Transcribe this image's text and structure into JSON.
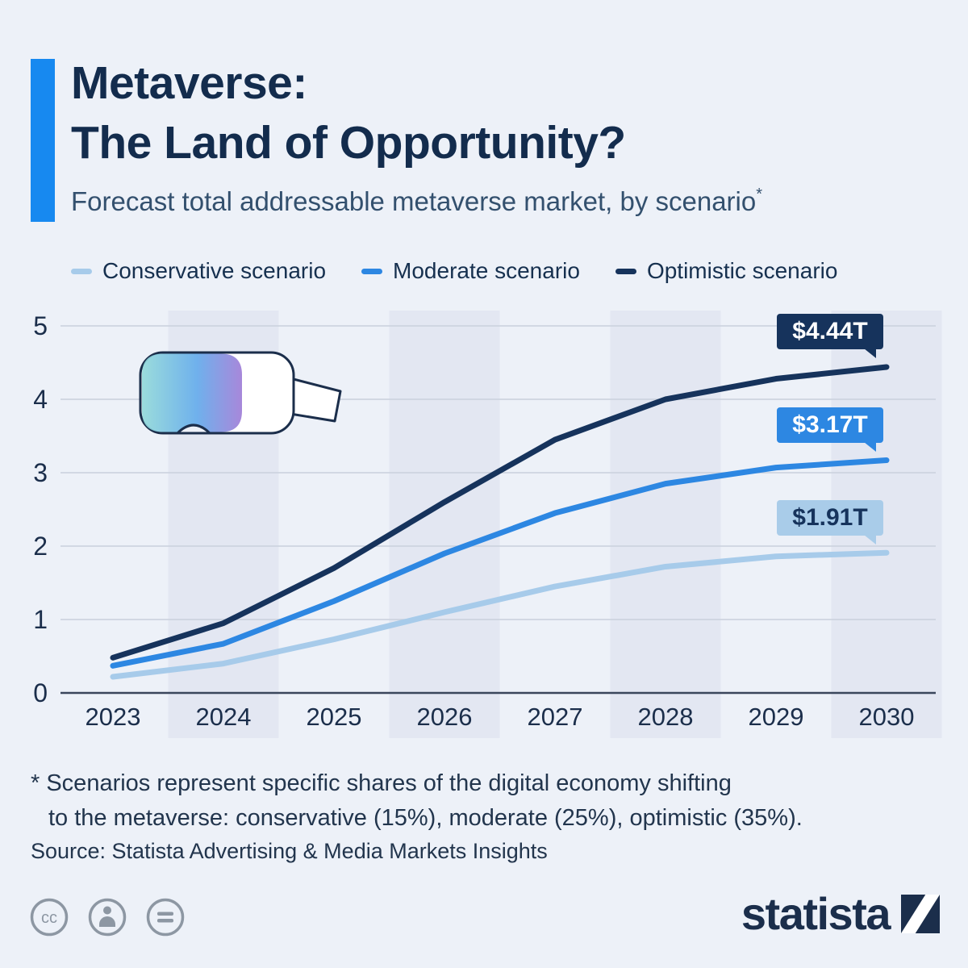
{
  "colors": {
    "background": "#edf1f8",
    "accent_bar": "#1789f0",
    "title": "#132c4d",
    "subtitle": "#33506e",
    "stripe": "#e3e7f2",
    "gridline": "#c9d0dc",
    "zero_axis": "#3a465c",
    "axis_text": "#1b2e4b",
    "conservative": "#a7cbea",
    "moderate": "#2d87e2",
    "optimistic": "#16335c"
  },
  "header": {
    "title_line1": "Metaverse:",
    "title_line2": "The Land of Opportunity?",
    "subtitle": "Forecast total addressable metaverse market, by scenario",
    "footnote_marker": "*"
  },
  "legend": {
    "items": [
      {
        "label": "Conservative scenario",
        "color": "#a7cbea"
      },
      {
        "label": "Moderate scenario",
        "color": "#2d87e2"
      },
      {
        "label": "Optimistic scenario",
        "color": "#16335c"
      }
    ]
  },
  "chart_data": {
    "type": "line",
    "title": "Forecast total addressable metaverse market, by scenario",
    "x": [
      "2023",
      "2024",
      "2025",
      "2026",
      "2027",
      "2028",
      "2029",
      "2030"
    ],
    "ylim": [
      0,
      5
    ],
    "yticks": [
      "0",
      "1",
      "2",
      "3",
      "4",
      "5"
    ],
    "grid": true,
    "stripe_years": [
      "2024",
      "2026",
      "2028",
      "2030"
    ],
    "legend_position": "top",
    "series": [
      {
        "name": "Conservative scenario",
        "color": "#a7cbea",
        "values": [
          0.22,
          0.4,
          0.73,
          1.1,
          1.45,
          1.72,
          1.86,
          1.91
        ],
        "end_label": "$1.91T"
      },
      {
        "name": "Moderate scenario",
        "color": "#2d87e2",
        "values": [
          0.37,
          0.67,
          1.25,
          1.9,
          2.45,
          2.85,
          3.07,
          3.17
        ],
        "end_label": "$3.17T"
      },
      {
        "name": "Optimistic scenario",
        "color": "#16335c",
        "values": [
          0.48,
          0.95,
          1.7,
          2.6,
          3.45,
          4.0,
          4.28,
          4.44
        ],
        "end_label": "$4.44T"
      }
    ]
  },
  "badges": {
    "optimistic": "$4.44T",
    "moderate": "$3.17T",
    "conservative": "$1.91T"
  },
  "notes": {
    "footnote_line1": "* Scenarios represent specific shares of the digital economy shifting",
    "footnote_line2": "to the metaverse: conservative (15%), moderate (25%), optimistic (35%).",
    "source": "Source: Statista Advertising & Media Markets Insights"
  },
  "footer": {
    "logo_text": "statista",
    "license_badges": [
      "cc",
      "by",
      "nd"
    ]
  }
}
